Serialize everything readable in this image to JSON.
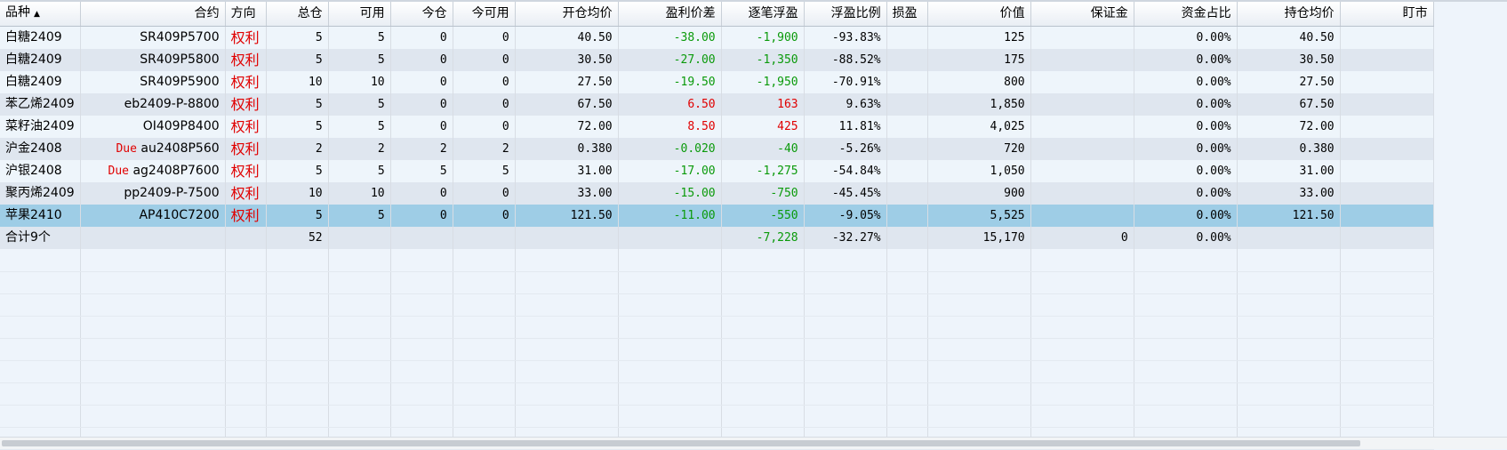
{
  "headers": [
    "品种",
    "合约",
    "方向",
    "总仓",
    "可用",
    "今仓",
    "今可用",
    "开仓均价",
    "盈利价差",
    "逐笔浮盈",
    "浮盈比例",
    "损盈",
    "价值",
    "保证金",
    "资金占比",
    "持仓均价",
    "盯市"
  ],
  "sort_indicator": "▲",
  "rows": [
    {
      "variety": "白糖2409",
      "due": "",
      "contract": "SR409P5700",
      "direction": "权利",
      "total": "5",
      "available": "5",
      "today": "0",
      "today_avail": "0",
      "open_avg": "40.50",
      "pl_diff": "-38.00",
      "pl_diff_sign": "neg",
      "float_pl": "-1,900",
      "float_sign": "neg",
      "float_ratio": "-93.83%",
      "stop": "",
      "value": "125",
      "margin": "",
      "fund_ratio": "0.00%",
      "hold_avg": "40.50",
      "mtm": ""
    },
    {
      "variety": "白糖2409",
      "due": "",
      "contract": "SR409P5800",
      "direction": "权利",
      "total": "5",
      "available": "5",
      "today": "0",
      "today_avail": "0",
      "open_avg": "30.50",
      "pl_diff": "-27.00",
      "pl_diff_sign": "neg",
      "float_pl": "-1,350",
      "float_sign": "neg",
      "float_ratio": "-88.52%",
      "stop": "",
      "value": "175",
      "margin": "",
      "fund_ratio": "0.00%",
      "hold_avg": "30.50",
      "mtm": ""
    },
    {
      "variety": "白糖2409",
      "due": "",
      "contract": "SR409P5900",
      "direction": "权利",
      "total": "10",
      "available": "10",
      "today": "0",
      "today_avail": "0",
      "open_avg": "27.50",
      "pl_diff": "-19.50",
      "pl_diff_sign": "neg",
      "float_pl": "-1,950",
      "float_sign": "neg",
      "float_ratio": "-70.91%",
      "stop": "",
      "value": "800",
      "margin": "",
      "fund_ratio": "0.00%",
      "hold_avg": "27.50",
      "mtm": ""
    },
    {
      "variety": "苯乙烯2409",
      "due": "",
      "contract": "eb2409-P-8800",
      "direction": "权利",
      "total": "5",
      "available": "5",
      "today": "0",
      "today_avail": "0",
      "open_avg": "67.50",
      "pl_diff": "6.50",
      "pl_diff_sign": "pos",
      "float_pl": "163",
      "float_sign": "pos",
      "float_ratio": "9.63%",
      "stop": "",
      "value": "1,850",
      "margin": "",
      "fund_ratio": "0.00%",
      "hold_avg": "67.50",
      "mtm": ""
    },
    {
      "variety": "菜籽油2409",
      "due": "",
      "contract": "OI409P8400",
      "direction": "权利",
      "total": "5",
      "available": "5",
      "today": "0",
      "today_avail": "0",
      "open_avg": "72.00",
      "pl_diff": "8.50",
      "pl_diff_sign": "pos",
      "float_pl": "425",
      "float_sign": "pos",
      "float_ratio": "11.81%",
      "stop": "",
      "value": "4,025",
      "margin": "",
      "fund_ratio": "0.00%",
      "hold_avg": "72.00",
      "mtm": ""
    },
    {
      "variety": "沪金2408",
      "due": "Due",
      "contract": "au2408P560",
      "direction": "权利",
      "total": "2",
      "available": "2",
      "today": "2",
      "today_avail": "2",
      "open_avg": "0.380",
      "pl_diff": "-0.020",
      "pl_diff_sign": "neg",
      "float_pl": "-40",
      "float_sign": "neg",
      "float_ratio": "-5.26%",
      "stop": "",
      "value": "720",
      "margin": "",
      "fund_ratio": "0.00%",
      "hold_avg": "0.380",
      "mtm": ""
    },
    {
      "variety": "沪银2408",
      "due": "Due",
      "contract": "ag2408P7600",
      "direction": "权利",
      "total": "5",
      "available": "5",
      "today": "5",
      "today_avail": "5",
      "open_avg": "31.00",
      "pl_diff": "-17.00",
      "pl_diff_sign": "neg",
      "float_pl": "-1,275",
      "float_sign": "neg",
      "float_ratio": "-54.84%",
      "stop": "",
      "value": "1,050",
      "margin": "",
      "fund_ratio": "0.00%",
      "hold_avg": "31.00",
      "mtm": ""
    },
    {
      "variety": "聚丙烯2409",
      "due": "",
      "contract": "pp2409-P-7500",
      "direction": "权利",
      "total": "10",
      "available": "10",
      "today": "0",
      "today_avail": "0",
      "open_avg": "33.00",
      "pl_diff": "-15.00",
      "pl_diff_sign": "neg",
      "float_pl": "-750",
      "float_sign": "neg",
      "float_ratio": "-45.45%",
      "stop": "",
      "value": "900",
      "margin": "",
      "fund_ratio": "0.00%",
      "hold_avg": "33.00",
      "mtm": ""
    },
    {
      "variety": "苹果2410",
      "due": "",
      "contract": "AP410C7200",
      "direction": "权利",
      "total": "5",
      "available": "5",
      "today": "0",
      "today_avail": "0",
      "open_avg": "121.50",
      "pl_diff": "-11.00",
      "pl_diff_sign": "neg",
      "float_pl": "-550",
      "float_sign": "neg",
      "float_ratio": "-9.05%",
      "stop": "",
      "value": "5,525",
      "margin": "",
      "fund_ratio": "0.00%",
      "hold_avg": "121.50",
      "mtm": "",
      "selected": true
    }
  ],
  "totals": {
    "label": "合计9个",
    "total": "52",
    "float_pl": "-7,228",
    "float_sign": "neg",
    "float_ratio": "-32.27%",
    "value": "15,170",
    "margin": "0",
    "fund_ratio": "0.00%"
  },
  "colors": {
    "positive": "#e00000",
    "negative": "#0a9a0a",
    "selected_row": "#9ecde6",
    "direction": "#e00000"
  },
  "blank_rows": 9
}
